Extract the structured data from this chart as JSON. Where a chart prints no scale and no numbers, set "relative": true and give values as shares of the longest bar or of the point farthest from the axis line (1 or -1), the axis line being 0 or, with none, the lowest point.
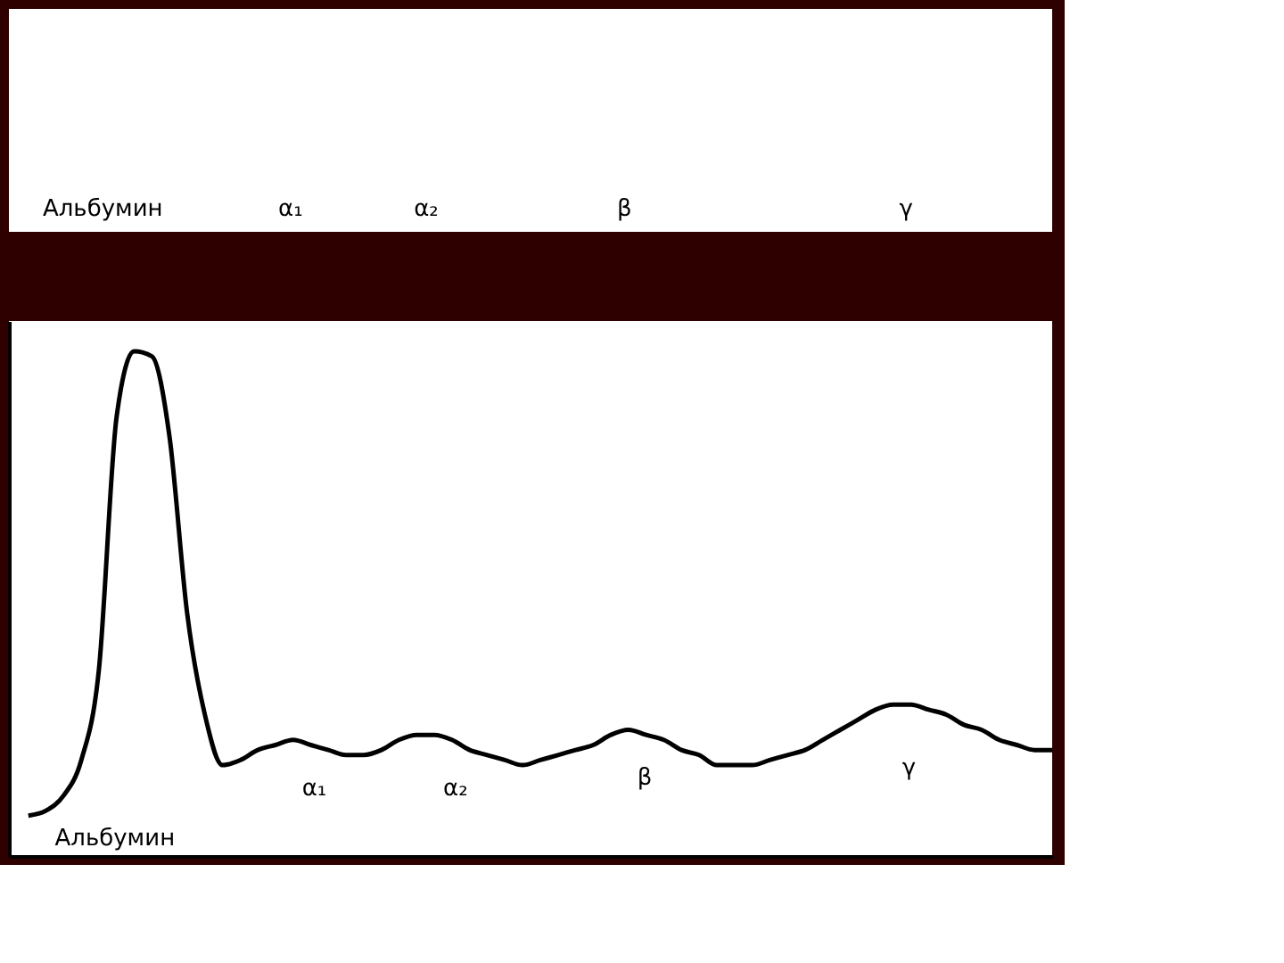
{
  "chart_data": [
    {
      "type": "other",
      "annotations": [
        "Альбумин",
        "α₁",
        "α₂",
        "β",
        "γ"
      ]
    },
    {
      "type": "line",
      "relative": true,
      "color": "#000000",
      "categories": [
        null,
        null,
        null,
        null,
        null,
        null,
        null,
        null,
        null,
        null,
        null,
        null,
        null,
        null,
        null,
        null,
        null,
        null,
        null,
        null,
        null,
        null,
        null,
        null,
        null,
        null,
        null,
        null,
        null,
        null,
        null,
        null,
        null,
        null,
        null,
        null,
        null,
        null,
        null,
        null,
        null,
        null,
        null,
        null,
        null,
        null,
        null,
        null,
        null,
        null,
        null,
        null,
        null,
        null,
        null,
        null,
        null,
        null,
        null
      ],
      "values": [
        0.08,
        0.09,
        0.12,
        0.19,
        0.37,
        0.87,
        1,
        0.99,
        0.83,
        0.48,
        0.28,
        0.18,
        0.19,
        0.21,
        0.22,
        0.23,
        0.22,
        0.21,
        0.2,
        0.2,
        0.21,
        0.23,
        0.24,
        0.24,
        0.23,
        0.21,
        0.2,
        0.19,
        0.18,
        0.19,
        0.2,
        0.21,
        0.22,
        0.24,
        0.25,
        0.24,
        0.23,
        0.21,
        0.2,
        0.18,
        0.18,
        0.18,
        0.19,
        0.2,
        0.21,
        0.23,
        0.25,
        0.27,
        0.29,
        0.3,
        0.3,
        0.29,
        0.28,
        0.26,
        0.25,
        0.23,
        0.22,
        0.21,
        0.21
      ],
      "annotations": [
        "Альбумин",
        "α₁",
        "α₂",
        "β",
        "γ"
      ]
    }
  ]
}
